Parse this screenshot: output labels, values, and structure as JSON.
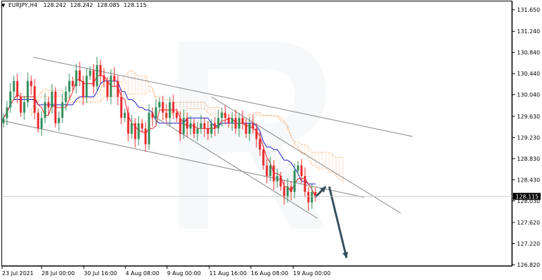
{
  "header": {
    "dropdown_glyph": "▼",
    "symbol": "EURJPY,H4",
    "open": "128.242",
    "high": "128.242",
    "low": "128.085",
    "close": "128.115"
  },
  "watermark": "R",
  "colors": {
    "bull": "#2e8b57",
    "bear": "#e8262a",
    "tenkan": "#e8262a",
    "kijun": "#1c1cc8",
    "cloud": "#f4a460",
    "channel": "#9a9a9a",
    "forecast_arrow": "#35505e",
    "price_label_bg": "#000000",
    "price_label_text": "#ffffff"
  },
  "chart_data": {
    "type": "candlestick",
    "symbol": "EURJPY",
    "timeframe": "H4",
    "ylim": [
      126.7,
      131.75
    ],
    "y_ticks": [
      "131.650",
      "131.240",
      "130.840",
      "130.440",
      "130.040",
      "129.630",
      "129.230",
      "128.830",
      "128.430",
      "128.030",
      "127.620",
      "127.220",
      "126.820"
    ],
    "current_price": "128.115",
    "x_ticks": [
      "23 Jul 2021",
      "28 Jul 00:00",
      "30 Jul 16:00",
      "4 Aug 08:00",
      "9 Aug 00:00",
      "11 Aug 16:00",
      "16 Aug 08:00",
      "19 Aug 00:00"
    ],
    "close": [
      129.6,
      129.8,
      130.1,
      130.3,
      130.0,
      129.7,
      129.9,
      130.3,
      130.2,
      129.7,
      129.4,
      129.6,
      129.9,
      129.8,
      130.1,
      129.5,
      129.6,
      129.9,
      130.1,
      130.3,
      130.2,
      130.5,
      130.3,
      130.0,
      130.4,
      130.5,
      130.2,
      130.6,
      130.4,
      130.3,
      130.0,
      130.4,
      130.3,
      130.0,
      129.6,
      129.7,
      129.3,
      129.5,
      129.2,
      129.5,
      129.4,
      129.1,
      129.7,
      129.6,
      129.8,
      129.9,
      129.7,
      129.6,
      129.9,
      129.7,
      129.6,
      129.3,
      129.6,
      129.4,
      129.5,
      129.3,
      129.4,
      129.5,
      129.4,
      129.3,
      129.5,
      129.4,
      129.6,
      129.7,
      129.6,
      129.5,
      129.6,
      129.4,
      129.6,
      129.5,
      129.3,
      129.5,
      129.4,
      129.2,
      129.0,
      128.7,
      128.5,
      128.7,
      128.4,
      128.5,
      128.3,
      128.1,
      128.3,
      128.2,
      128.6,
      128.7,
      128.5,
      128.2,
      128.0,
      128.2,
      128.1
    ],
    "forecast_arrow_1": {
      "from": [
        90,
        128.1
      ],
      "to": [
        93,
        128.3
      ]
    },
    "forecast_arrow_2": {
      "from": [
        94,
        128.3
      ],
      "to": [
        99,
        126.95
      ]
    }
  }
}
